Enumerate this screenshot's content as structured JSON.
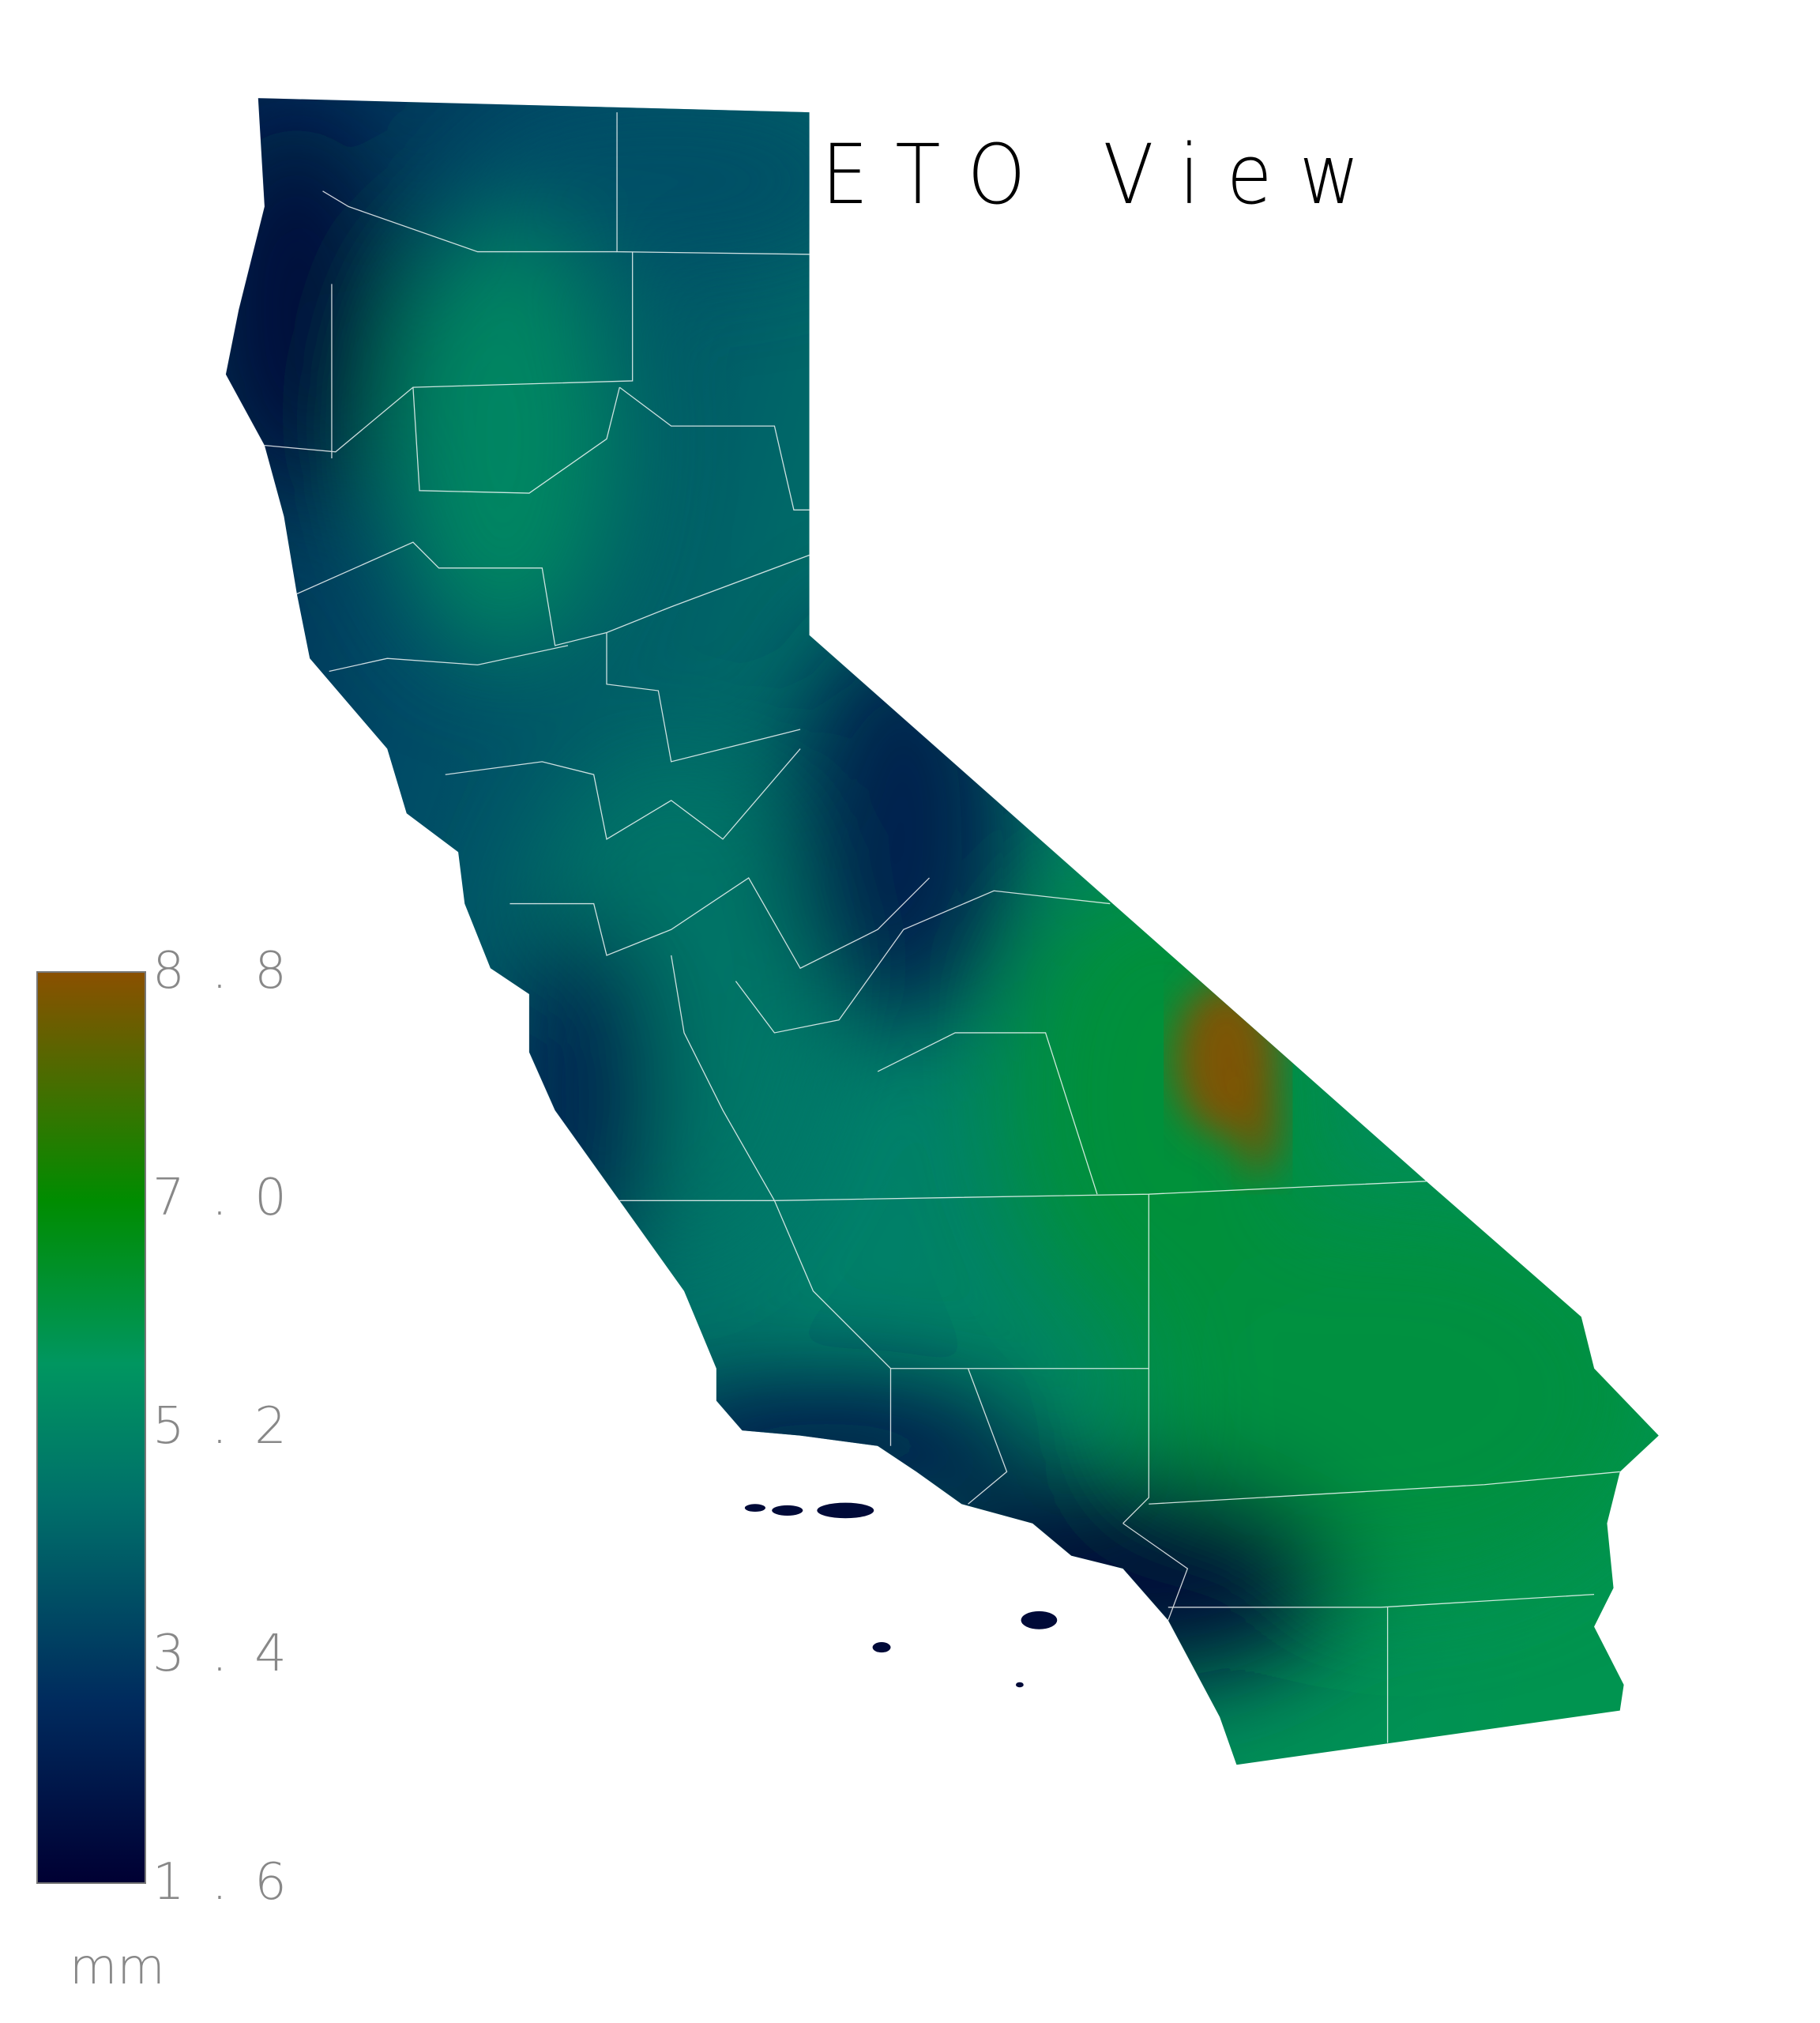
{
  "title": "ETO View",
  "legend": {
    "ticks": [
      "8.8",
      "7.0",
      "5.2",
      "3.4",
      "1.6"
    ],
    "unit": "mm",
    "range": [
      1.6,
      8.8
    ],
    "colors": [
      "#000033",
      "#002b5e",
      "#00706a",
      "#009660",
      "#008c00",
      "#8a5000"
    ]
  },
  "map": {
    "region": "California",
    "boundary_color": "#ffffff",
    "background": "#ffffff"
  }
}
